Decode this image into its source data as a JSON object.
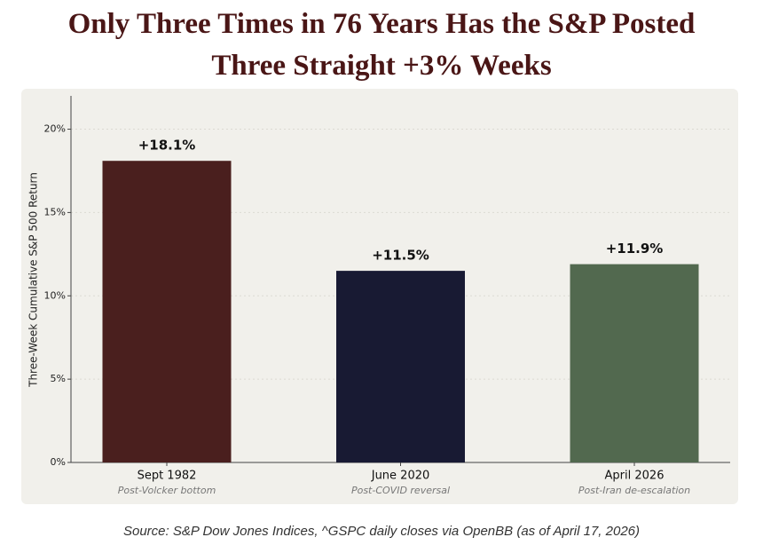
{
  "chart_data": {
    "type": "bar",
    "title": "Only Three Times in 76 Years Has the S&P Posted Three Straight +3% Weeks",
    "y_label": "Three-Week Cumulative S&P 500 Return",
    "categories": [
      "Sept 1982",
      "June 2020",
      "April 2026"
    ],
    "subtitles": [
      "Post-Volcker bottom",
      "Post-COVID reversal",
      "Post-Iran de-escalation"
    ],
    "values": [
      18.1,
      11.5,
      11.9
    ],
    "value_labels": [
      "+18.1%",
      "+11.5%",
      "+11.9%"
    ],
    "colors": [
      "#4a1f1e",
      "#181a33",
      "#52694f"
    ],
    "ylim": [
      0,
      22
    ],
    "yticks": [
      {
        "value": 0,
        "label": "0%"
      },
      {
        "value": 5,
        "label": "5%"
      },
      {
        "value": 10,
        "label": "10%"
      },
      {
        "value": 15,
        "label": "15%"
      },
      {
        "value": 20,
        "label": "20%"
      }
    ],
    "grid": true,
    "source": "Source: S&P Dow Jones Indices, ^GSPC daily closes via OpenBB (as of April 17, 2026)"
  }
}
